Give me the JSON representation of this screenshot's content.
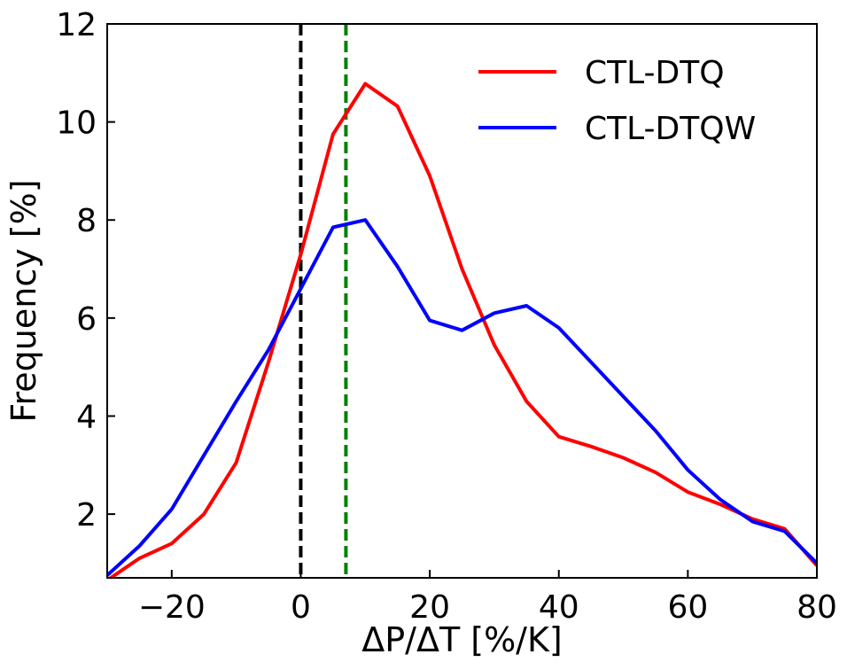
{
  "chart_data": {
    "type": "line",
    "xlabel": "ΔP/ΔT [%/K]",
    "ylabel": "Frequency [%]",
    "xlim": [
      -30,
      80
    ],
    "ylim": [
      0.7,
      12
    ],
    "xticks": [
      -20,
      0,
      20,
      40,
      60,
      80
    ],
    "xtick_labels": [
      "−20",
      "0",
      "20",
      "40",
      "60",
      "80"
    ],
    "yticks": [
      2,
      4,
      6,
      8,
      10,
      12
    ],
    "ytick_labels": [
      "2",
      "4",
      "6",
      "8",
      "10",
      "12"
    ],
    "grid": false,
    "legend_position": "top-right",
    "x": [
      -30,
      -25,
      -20,
      -15,
      -10,
      -5,
      0,
      5,
      10,
      15,
      20,
      25,
      30,
      35,
      40,
      45,
      50,
      55,
      60,
      65,
      70,
      75,
      80
    ],
    "series": [
      {
        "name": "CTL-DTQ",
        "color": "#ff0000",
        "values": [
          0.65,
          1.1,
          1.4,
          2.0,
          3.05,
          5.1,
          7.3,
          9.75,
          10.78,
          10.32,
          8.9,
          7.0,
          5.45,
          4.3,
          3.58,
          3.38,
          3.15,
          2.85,
          2.45,
          2.2,
          1.9,
          1.7,
          0.95
        ]
      },
      {
        "name": "CTL-DTQW",
        "color": "#0000ff",
        "values": [
          0.75,
          1.35,
          2.1,
          3.2,
          4.3,
          5.35,
          6.6,
          7.85,
          8.0,
          7.05,
          5.95,
          5.75,
          6.1,
          6.25,
          5.8,
          5.1,
          4.4,
          3.7,
          2.9,
          2.3,
          1.85,
          1.65,
          1.0
        ]
      }
    ],
    "reference_lines": [
      {
        "x": 0,
        "color": "#000000",
        "style": "dashed"
      },
      {
        "x": 7,
        "color": "#008000",
        "style": "dashed"
      }
    ]
  }
}
